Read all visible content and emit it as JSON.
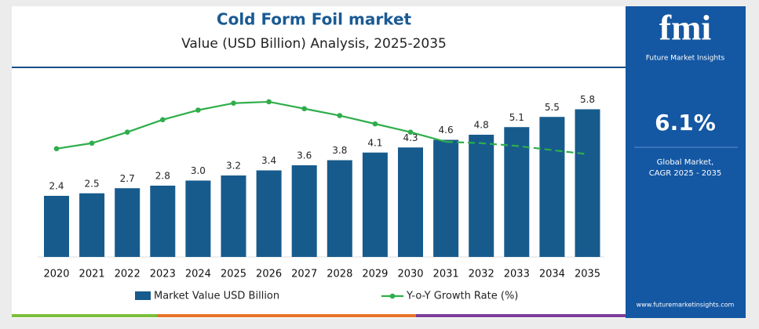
{
  "chart_data": {
    "type": "bar-line",
    "title": "Cold Form Foil market",
    "subtitle": "Value (USD Billion) Analysis, 2025-2035",
    "categories": [
      "2020",
      "2021",
      "2022",
      "2023",
      "2024",
      "2025",
      "2026",
      "2027",
      "2028",
      "2029",
      "2030",
      "2031",
      "2032",
      "2033",
      "2034",
      "2035"
    ],
    "series": [
      {
        "name": "Market Value USD Billion",
        "color": "#175b8d",
        "values": [
          2.4,
          2.5,
          2.7,
          2.8,
          3.0,
          3.2,
          3.4,
          3.6,
          3.8,
          4.1,
          4.3,
          4.6,
          4.8,
          5.1,
          5.5,
          5.8
        ],
        "value_labels": [
          "2.4",
          "2.5",
          "2.7",
          "2.8",
          "3.0",
          "3.2",
          "3.4",
          "3.6",
          "3.8",
          "4.1",
          "4.3",
          "4.6",
          "4.8",
          "5.1",
          "5.5",
          "5.8"
        ]
      },
      {
        "name": "Y-o-Y Growth Rate (%)",
        "color": "#2eae4a",
        "axis": "y2",
        "values": [
          4.5,
          4.9,
          5.7,
          6.6,
          7.3,
          7.8,
          7.9,
          7.4,
          6.9,
          6.3,
          5.7,
          5.0,
          4.9,
          4.7,
          4.4,
          4.1
        ]
      }
    ],
    "legend": "bottom"
  },
  "panel": {
    "logo": "fmi",
    "brand": "Future Market Insights",
    "cagr": "6.1%",
    "caption_1": "Global Market,",
    "caption_2": "CAGR 2025 - 2035",
    "url": "www.futuremarketinsights.com"
  }
}
